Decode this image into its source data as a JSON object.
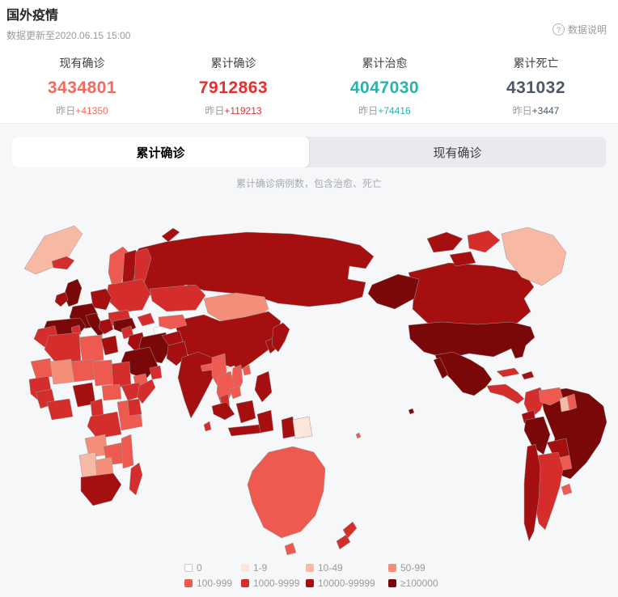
{
  "header": {
    "title": "国外疫情",
    "updated": "数据更新至2020.06.15 15:00",
    "info_label": "数据说明",
    "info_icon": "?"
  },
  "stats": [
    {
      "label": "现有确诊",
      "value": "3434801",
      "delta_prefix": "昨日",
      "delta": "+41350",
      "color": "#f5695c"
    },
    {
      "label": "累计确诊",
      "value": "7912863",
      "delta_prefix": "昨日",
      "delta": "+119213",
      "color": "#e62e2e"
    },
    {
      "label": "累计治愈",
      "value": "4047030",
      "delta_prefix": "昨日",
      "delta": "+74416",
      "color": "#29b3ab"
    },
    {
      "label": "累计死亡",
      "value": "431032",
      "delta_prefix": "昨日",
      "delta": "+3447",
      "color": "#4e5766"
    }
  ],
  "tabs": [
    {
      "label": "累计确诊",
      "active": true
    },
    {
      "label": "现有确诊",
      "active": false
    }
  ],
  "map_subtitle": "累计确诊病例数，包含治愈、死亡",
  "legend": [
    {
      "label": "0",
      "color": "#ffffff",
      "border": "#c8c8c8"
    },
    {
      "label": "1-9",
      "color": "#fce5da"
    },
    {
      "label": "10-49",
      "color": "#f8b9a4"
    },
    {
      "label": "50-99",
      "color": "#f58e79"
    },
    {
      "label": "100-999",
      "color": "#ee5a50"
    },
    {
      "label": "1000-9999",
      "color": "#d52c2c"
    },
    {
      "label": "10000-99999",
      "color": "#a50f0f"
    },
    {
      "label": "≥100000",
      "color": "#7b0809"
    }
  ],
  "map_regions": {
    "wrap-greenland": "10-49",
    "novaya-zemlya": "10000-99999",
    "iceland": "1000-9999",
    "norway": "100-999",
    "sweden": "10000-99999",
    "finland": "1000-9999",
    "uk": "≥100000",
    "ireland": "10000-99999",
    "france": "≥100000",
    "iberia": "≥100000",
    "germany": "10000-99999",
    "eastern-europe": "1000-9999",
    "balkans": "1000-9999",
    "italy": "≥100000",
    "greece": "10000-99999",
    "turkey": "≥100000",
    "russia": "10000-99999",
    "kazakhstan": "1000-9999",
    "turkmenistan": "0",
    "uzbekistan": "100-999",
    "caucasus": "1000-9999",
    "mongolia": "50-99",
    "china": "10000-99999",
    "south-korea": "10000-99999",
    "japan": "10000-99999",
    "india": "10000-99999",
    "pakistan": "10000-99999",
    "afghanistan": "10000-99999",
    "nepal": "100-999",
    "bangladesh": "10000-99999",
    "sri-lanka": "1000-9999",
    "iran": "≥100000",
    "iraq": "10000-99999",
    "levant": "1000-9999",
    "saudi-arabia": "≥100000",
    "yemen": "100-999",
    "oman": "1000-9999",
    "egypt": "10000-99999",
    "libya": "100-999",
    "algeria": "1000-9999",
    "morocco": "1000-9999",
    "tunisia": "1000-9999",
    "mauritania": "100-999",
    "mali": "50-99",
    "niger": "100-999",
    "chad": "100-999",
    "sudan": "1000-9999",
    "ethiopia": "1000-9999",
    "somalia": "1000-9999",
    "senegal": "1000-9999",
    "guinea": "1000-9999",
    "ghana": "1000-9999",
    "nigeria": "10000-99999",
    "cameroon": "1000-9999",
    "central-african-republic": "100-999",
    "dr-congo": "1000-9999",
    "east-africa": "100-999",
    "kenya": "1000-9999",
    "angola": "50-99",
    "zambia": "100-999",
    "mozambique": "100-999",
    "namibia": "10-49",
    "botswana": "50-99",
    "south-africa": "10000-99999",
    "madagascar": "1000-9999",
    "myanmar": "100-999",
    "thailand": "100-999",
    "laos": "1-9",
    "vietnam": "100-999",
    "cambodia": "100-999",
    "malaysia": "1000-9999",
    "sumatra": "10000-99999",
    "borneo": "10000-99999",
    "java": "10000-99999",
    "sulawesi": "10000-99999",
    "west-new-guinea": "10000-99999",
    "papua-new-guinea": "1-9",
    "philippines": "10000-99999",
    "taiwan": "100-999",
    "australia": "100-999",
    "tasmania": "100-999",
    "new-zealand-north": "1000-9999",
    "new-zealand-south": "1000-9999",
    "fiji": "100-999",
    "alaska": "≥100000",
    "canada": "10000-99999",
    "arctic-islands-1": "10000-99999",
    "arctic-islands-2": "1000-9999",
    "arctic-islands-3": "10000-99999",
    "greenland": "10-49",
    "united-states": "≥100000",
    "hawaii": "≥100000",
    "mexico": "≥100000",
    "baja-california": "≥100000",
    "central-america": "1000-9999",
    "cuba": "1000-9999",
    "hispaniola": "10000-99999",
    "brazil": "≥100000",
    "colombia": "1000-9999",
    "venezuela": "100-999",
    "guyana": "10-49",
    "suriname": "100-999",
    "ecuador": "10000-99999",
    "peru": "≥100000",
    "bolivia": "10000-99999",
    "paraguay": "100-999",
    "argentina": "1000-9999",
    "chile": "10000-99999",
    "uruguay": "100-999"
  }
}
